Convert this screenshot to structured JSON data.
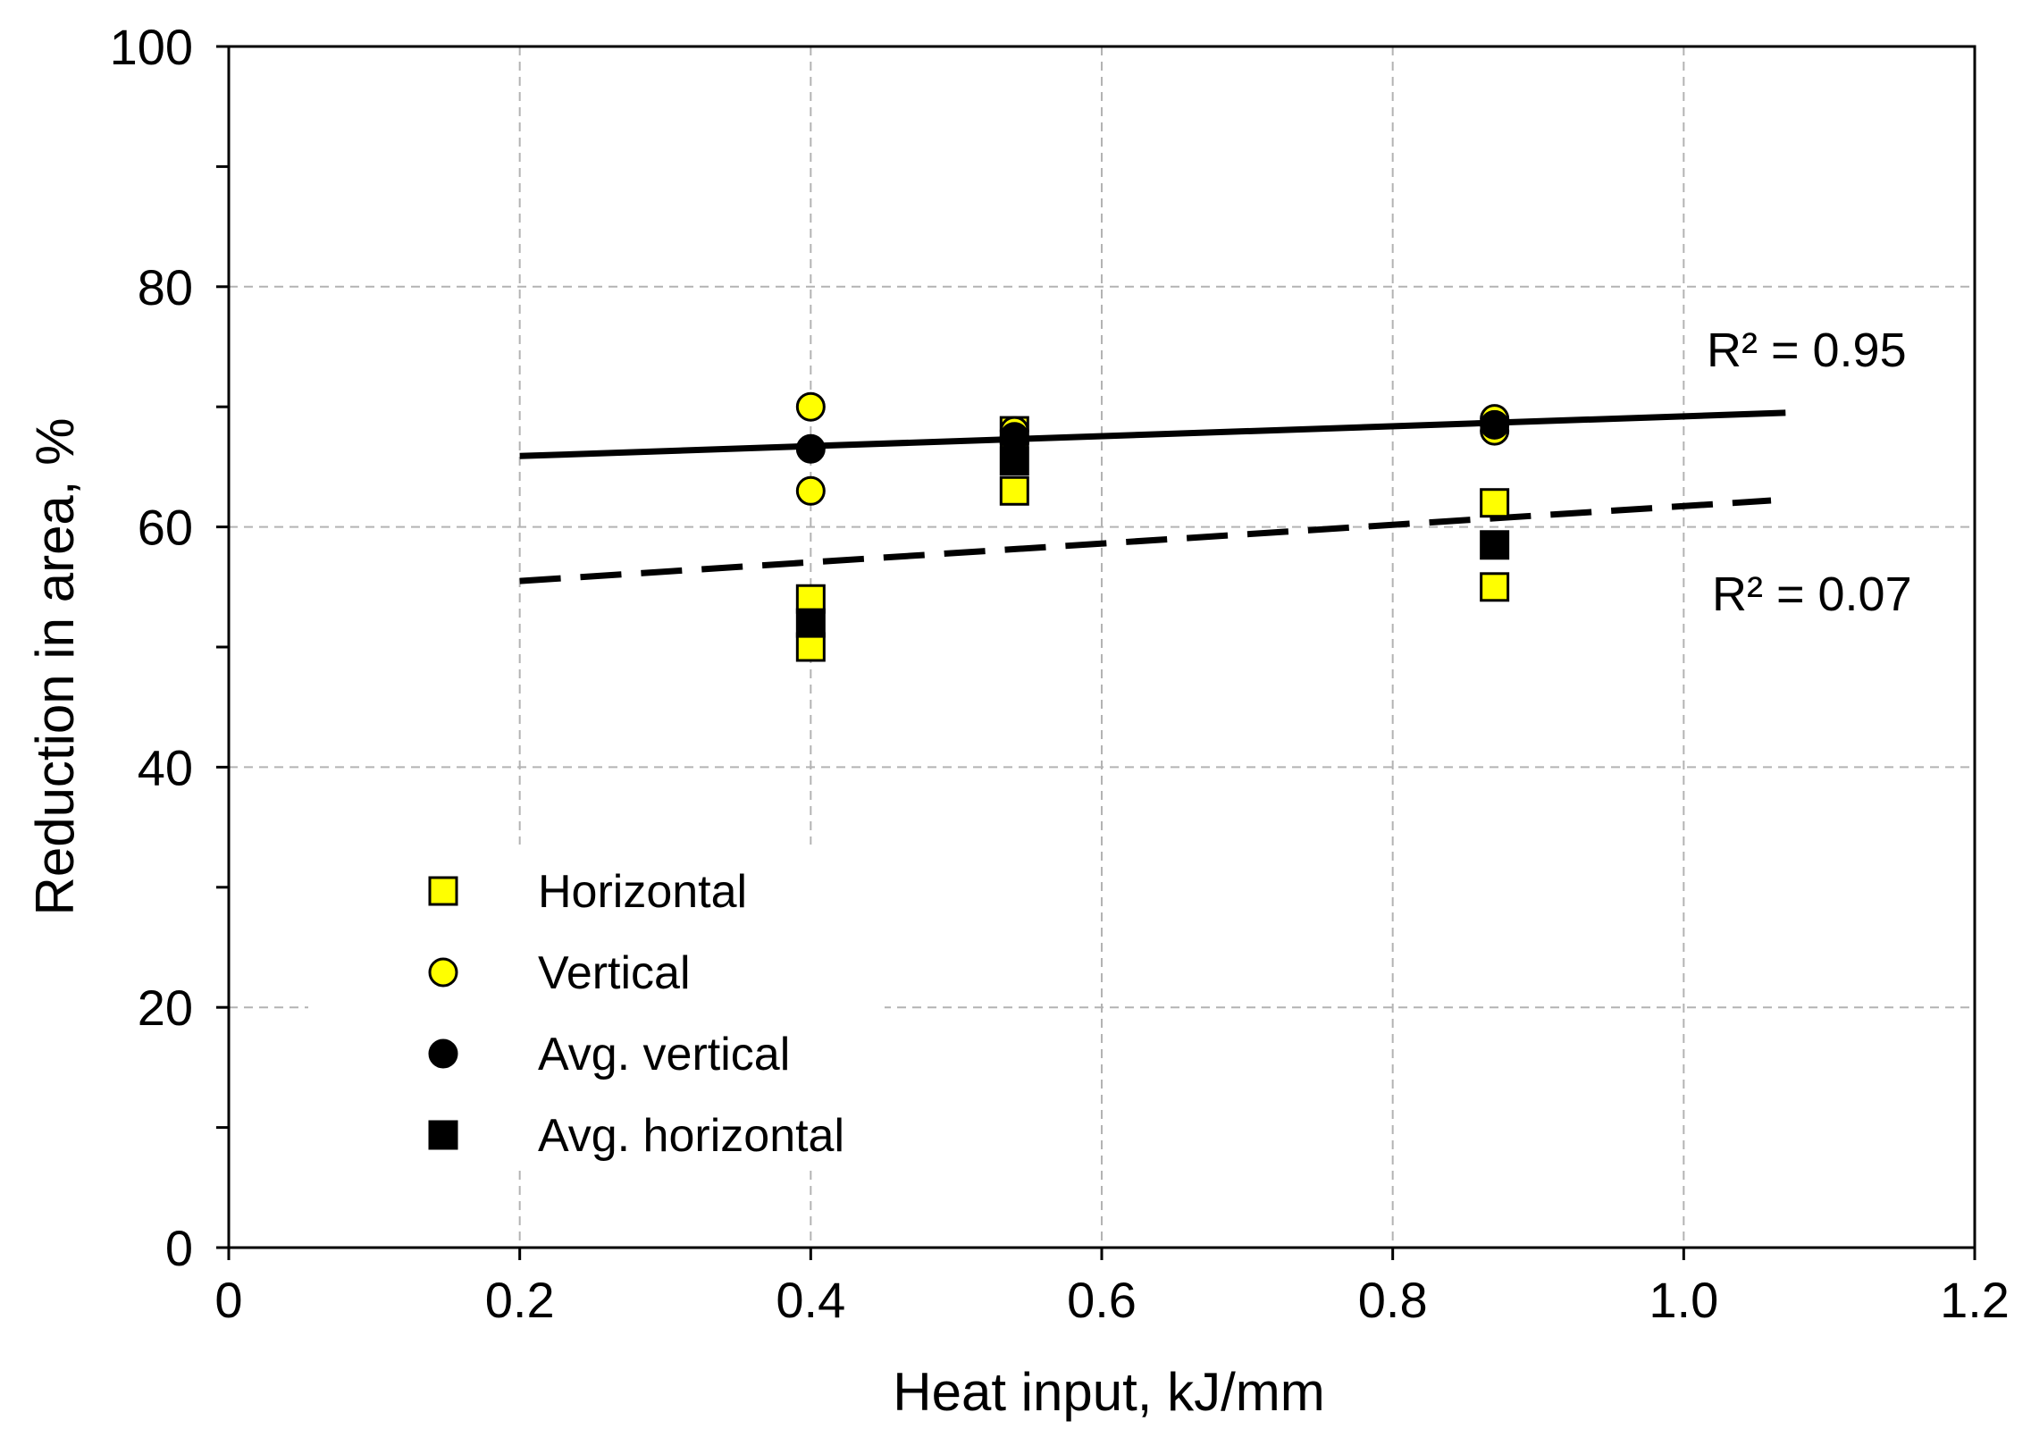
{
  "chart_data": {
    "type": "scatter",
    "title": "",
    "xlabel": "Heat input, kJ/mm",
    "ylabel": "Reduction in area, %",
    "xlim": [
      0,
      1.2
    ],
    "ylim": [
      0,
      100
    ],
    "x_ticks": [
      0,
      0.2,
      0.4,
      0.6,
      0.8,
      1.0,
      1.2
    ],
    "x_tick_labels": [
      "0",
      "0.2",
      "0.4",
      "0.6",
      "0.8",
      "1.0",
      "1.2"
    ],
    "y_ticks": [
      0,
      20,
      40,
      60,
      80,
      100
    ],
    "y_tick_labels": [
      "0",
      "20",
      "40",
      "60",
      "80",
      "100"
    ],
    "y_minor_step": 10,
    "grid": true,
    "legend_position": "lower-left",
    "series": [
      {
        "name": "Horizontal",
        "marker": "square",
        "fill": "#FFFF00",
        "stroke": "#000000",
        "points": [
          {
            "x": 0.4,
            "y": 54
          },
          {
            "x": 0.4,
            "y": 50
          },
          {
            "x": 0.54,
            "y": 68
          },
          {
            "x": 0.54,
            "y": 63
          },
          {
            "x": 0.87,
            "y": 62
          },
          {
            "x": 0.87,
            "y": 55
          }
        ]
      },
      {
        "name": "Vertical",
        "marker": "circle",
        "fill": "#FFFF00",
        "stroke": "#000000",
        "points": [
          {
            "x": 0.4,
            "y": 70
          },
          {
            "x": 0.4,
            "y": 63
          },
          {
            "x": 0.54,
            "y": 68
          },
          {
            "x": 0.54,
            "y": 67
          },
          {
            "x": 0.87,
            "y": 69
          },
          {
            "x": 0.87,
            "y": 68
          }
        ]
      },
      {
        "name": "Avg. vertical",
        "marker": "circle",
        "fill": "#000000",
        "stroke": "#000000",
        "points": [
          {
            "x": 0.4,
            "y": 66.5
          },
          {
            "x": 0.54,
            "y": 67.5
          },
          {
            "x": 0.87,
            "y": 68.5
          }
        ]
      },
      {
        "name": "Avg. horizontal",
        "marker": "square",
        "fill": "#000000",
        "stroke": "#000000",
        "points": [
          {
            "x": 0.4,
            "y": 52
          },
          {
            "x": 0.54,
            "y": 65.5
          },
          {
            "x": 0.87,
            "y": 58.5
          }
        ]
      }
    ],
    "trendlines": [
      {
        "name": "vertical-trend",
        "style": "solid",
        "x": [
          0.2,
          1.07
        ],
        "y": [
          65.9,
          69.5
        ],
        "r2_label": "R² = 0.95"
      },
      {
        "name": "horizontal-trend",
        "style": "dashed",
        "x": [
          0.2,
          1.06
        ],
        "y": [
          55.5,
          62.2
        ],
        "r2_label": "R² = 0.07"
      }
    ]
  }
}
